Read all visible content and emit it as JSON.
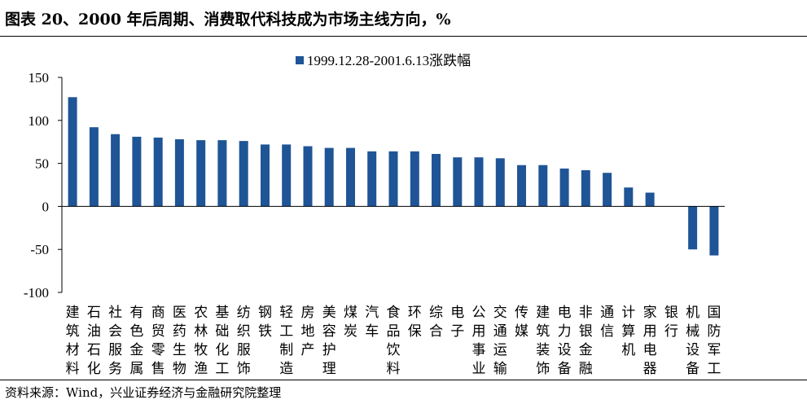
{
  "title": "图表 20、2000 年后周期、消费取代科技成为市场主线方向，%",
  "source": "资料来源：Wind，兴业证券经济与金融研究院整理",
  "colors": {
    "bar": "#1F5596",
    "axis": "#000000"
  },
  "chart_data": {
    "type": "bar",
    "legend": {
      "position": "top",
      "entries": [
        "1999.12.28-2001.6.13涨跌幅"
      ]
    },
    "ylim": [
      -100,
      150
    ],
    "yticks": [
      -100,
      -50,
      0,
      50,
      100,
      150
    ],
    "ytick_labels": [
      "-100",
      "-50",
      "0",
      "50",
      "100",
      "150"
    ],
    "grid": false,
    "xlabel": "",
    "ylabel": "",
    "categories": [
      "建筑材料",
      "石油石化",
      "社会服务",
      "有色金属",
      "商贸零售",
      "医药生物",
      "农林牧渔",
      "基础化工",
      "纺织服饰",
      "钢铁",
      "轻工制造",
      "房地产",
      "美容护理",
      "煤炭",
      "汽车",
      "食品饮料",
      "环保",
      "综合",
      "电子",
      "公用事业",
      "交通运输",
      "传媒",
      "建筑装饰",
      "电力设备",
      "非银金融",
      "通信",
      "计算机",
      "家用电器",
      "银行",
      "机械设备",
      "国防军工"
    ],
    "series": [
      {
        "name": "1999.12.28-2001.6.13涨跌幅",
        "values": [
          127,
          92,
          84,
          81,
          80,
          78,
          77,
          77,
          76,
          72,
          72,
          70,
          68,
          68,
          64,
          64,
          64,
          61,
          57,
          57,
          56,
          48,
          48,
          44,
          42,
          39,
          22,
          16,
          0,
          -50,
          -57
        ]
      }
    ]
  }
}
